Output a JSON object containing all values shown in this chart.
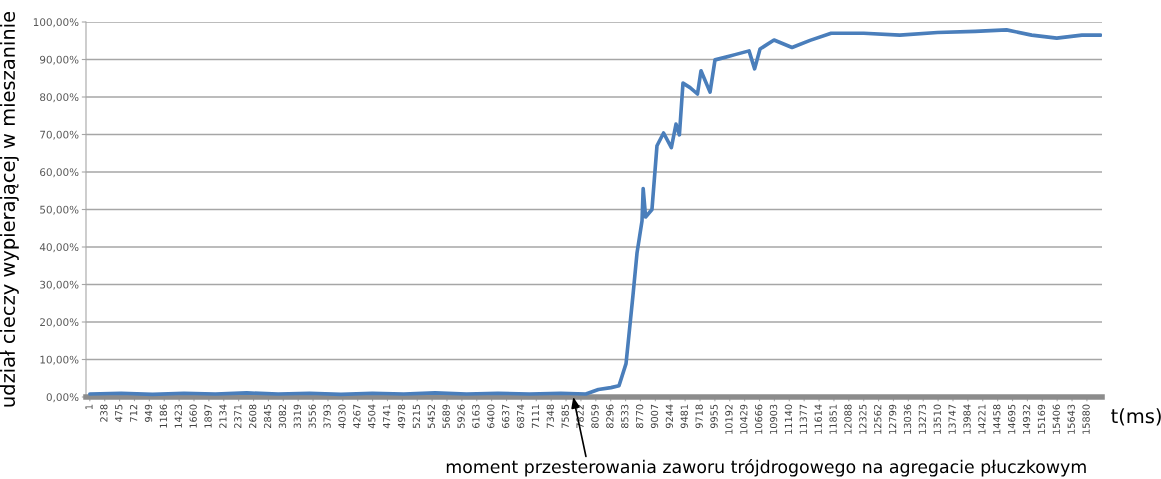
{
  "chart_data": {
    "type": "line",
    "ylabel": "udział cieczy wypierającej w mieszaninie",
    "xlabel": "t(ms)",
    "xlim": [
      -60,
      16120
    ],
    "ylim": [
      0,
      100
    ],
    "xticks": [
      1,
      238,
      475,
      712,
      949,
      1186,
      1423,
      1660,
      1897,
      2134,
      2371,
      2608,
      2845,
      3082,
      3319,
      3556,
      3793,
      4030,
      4267,
      4504,
      4741,
      4978,
      5215,
      5452,
      5689,
      5926,
      6163,
      6400,
      6637,
      6874,
      7111,
      7348,
      7585,
      7822,
      8059,
      8296,
      8533,
      8770,
      9007,
      9244,
      9481,
      9718,
      9955,
      10192,
      10429,
      10666,
      10903,
      11140,
      11377,
      11614,
      11851,
      12088,
      12325,
      12562,
      12799,
      13036,
      13273,
      13510,
      13747,
      13984,
      14221,
      14458,
      14695,
      14932,
      15169,
      15406,
      15643,
      15880
    ],
    "yticks": [
      {
        "value": 0,
        "label": "0,00%"
      },
      {
        "value": 10,
        "label": "10,00%"
      },
      {
        "value": 20,
        "label": "20,00%"
      },
      {
        "value": 30,
        "label": "30,00%"
      },
      {
        "value": 40,
        "label": "40,00%"
      },
      {
        "value": 50,
        "label": "50,00%"
      },
      {
        "value": 60,
        "label": "60,00%"
      },
      {
        "value": 70,
        "label": "70,00%"
      },
      {
        "value": 80,
        "label": "80,00%"
      },
      {
        "value": 90,
        "label": "90,00%"
      },
      {
        "value": 100,
        "label": "100,00%"
      }
    ],
    "grid": "y",
    "marker": "none",
    "line_style": "solid",
    "series": [
      {
        "color": "#4a7ebb",
        "x": [
          1,
          500,
          1000,
          1500,
          2000,
          2500,
          3000,
          3500,
          4000,
          4500,
          5000,
          5500,
          6000,
          6500,
          7000,
          7500,
          7900,
          8100,
          8300,
          8428,
          8540,
          8650,
          8715,
          8795,
          8813,
          8852,
          8953,
          9033,
          9138,
          9262,
          9336,
          9390,
          9447,
          9560,
          9678,
          9734,
          9878,
          9957,
          10100,
          10276,
          10499,
          10588,
          10674,
          10897,
          11184,
          11471,
          11806,
          12325,
          12900,
          13500,
          14100,
          14600,
          15000,
          15400,
          15800,
          16100
        ],
        "values": [
          0.8,
          1.0,
          0.7,
          1.0,
          0.8,
          1.1,
          0.8,
          1.0,
          0.7,
          1.0,
          0.8,
          1.1,
          0.8,
          1.0,
          0.8,
          1.0,
          0.8,
          2.0,
          2.5,
          3.0,
          8.9,
          27,
          38.4,
          47,
          55.6,
          48,
          50,
          67,
          70.4,
          66.5,
          72.8,
          69.9,
          83.7,
          82.5,
          80.8,
          87,
          81.3,
          89.9,
          90.5,
          91.3,
          92.3,
          87.5,
          92.8,
          95.2,
          93.2,
          95.1,
          97,
          97,
          96.5,
          97.2,
          97.5,
          97.9,
          96.5,
          95.7,
          96.5,
          96.5
        ]
      }
    ],
    "annotations": [
      {
        "text": "moment przesterowania zaworu trójdrogowego na agregacie płuczkowym",
        "x": 7700,
        "y": 0
      }
    ]
  }
}
